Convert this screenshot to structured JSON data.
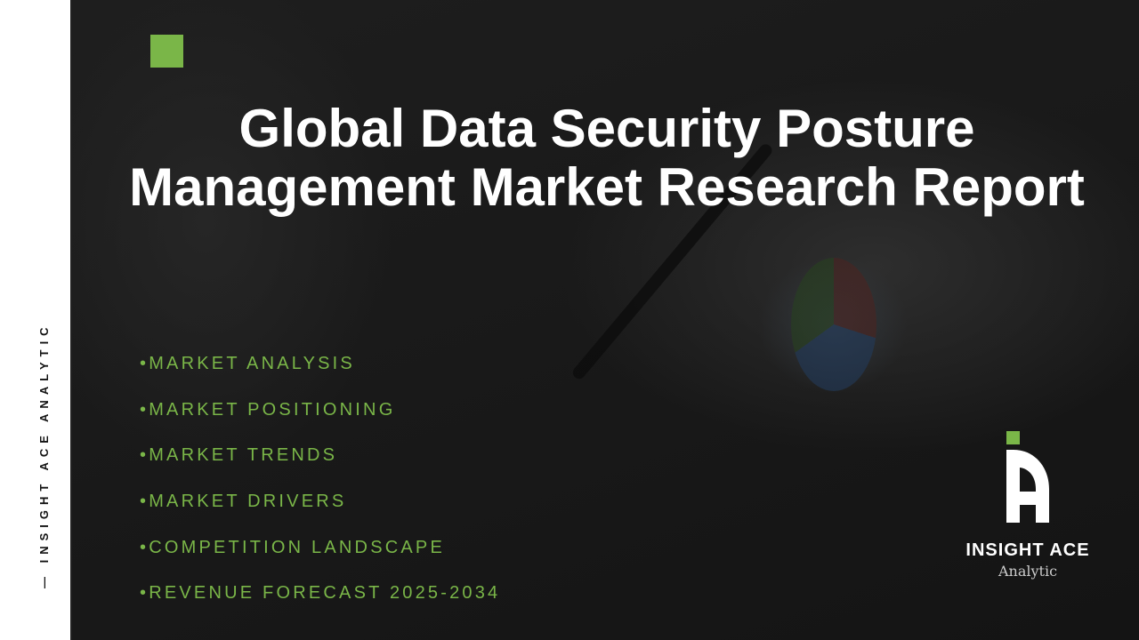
{
  "sidebar": {
    "vertical_text": "— INSIGHT ACE ANALYTIC"
  },
  "title": {
    "line1": "Global Data Security Posture",
    "line2": "Management Market Research Report"
  },
  "bullets": [
    "•MARKET ANALYSIS",
    "•MARKET POSITIONING",
    "•MARKET TRENDS",
    "•MARKET DRIVERS",
    "•COMPETITION LANDSCAPE",
    "•REVENUE FORECAST 2025-2034"
  ],
  "logo": {
    "name": "INSIGHT ACE",
    "sub": "Analytic"
  },
  "colors": {
    "accent": "#7ab648",
    "sidebar": "#ffffff",
    "background": "#1a1a1a"
  }
}
